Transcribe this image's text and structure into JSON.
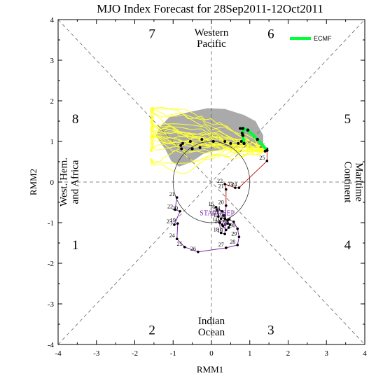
{
  "chart_data": {
    "type": "line",
    "title": "MJO Index Forecast for 28Sep2011-12Oct2011",
    "xlabel": "RMM1",
    "ylabel": "RMM2",
    "xlim": [
      -4,
      4
    ],
    "ylim": [
      -4,
      4
    ],
    "xticks": [
      "-4",
      "-3",
      "-2",
      "-1",
      "0",
      "1",
      "2",
      "3",
      "4"
    ],
    "yticks": [
      "-4",
      "-3",
      "-2",
      "-1",
      "0",
      "1",
      "2",
      "3",
      "4"
    ],
    "unit_circle_radius": 1,
    "legend": {
      "position": "top-right",
      "entries": [
        {
          "name": "ECMF",
          "color": "#00ff33"
        }
      ]
    },
    "phase_numbers": [
      {
        "label": "7",
        "x": -1.55,
        "y": 3.65
      },
      {
        "label": "6",
        "x": 1.55,
        "y": 3.65
      },
      {
        "label": "8",
        "x": -3.55,
        "y": 1.55
      },
      {
        "label": "5",
        "x": 3.55,
        "y": 1.55
      },
      {
        "label": "1",
        "x": -3.55,
        "y": -1.55
      },
      {
        "label": "4",
        "x": 3.55,
        "y": -1.55
      },
      {
        "label": "2",
        "x": -1.55,
        "y": -3.65
      },
      {
        "label": "3",
        "x": 1.55,
        "y": -3.65
      }
    ],
    "region_labels": [
      {
        "lines": [
          "Western",
          "Pacific"
        ],
        "x": 0,
        "y": 3.55,
        "rotate": 0
      },
      {
        "lines": [
          "Indian",
          "Ocean"
        ],
        "x": 0,
        "y": -3.55,
        "rotate": 0
      },
      {
        "lines": [
          "West. Hem.",
          "and Africa"
        ],
        "x": -3.72,
        "y": 0,
        "rotate": -90
      },
      {
        "lines": [
          "Maritime",
          "Continent"
        ],
        "x": 3.72,
        "y": 0,
        "rotate": 90
      }
    ],
    "start_label": {
      "text": "START SEP",
      "x": 0.15,
      "y": -0.82,
      "color": "#7a2ba6"
    },
    "observed": {
      "points": [
        {
          "label": "21",
          "x": -0.9,
          "y": -0.38
        },
        {
          "label": "22",
          "x": -0.95,
          "y": -0.68
        },
        {
          "label": "20",
          "x": -0.82,
          "y": -0.72
        },
        {
          "label": "23",
          "x": -0.97,
          "y": -1.05
        },
        {
          "label": "19",
          "x": -0.88,
          "y": -1.02
        },
        {
          "label": "24",
          "x": -0.9,
          "y": -1.4
        },
        {
          "label": "25",
          "x": -0.7,
          "y": -1.6
        },
        {
          "label": "26",
          "x": -0.35,
          "y": -1.72
        },
        {
          "label": "27",
          "x": 0.38,
          "y": -1.62
        },
        {
          "label": "28",
          "x": 0.68,
          "y": -1.55
        },
        {
          "label": "29",
          "x": 0.72,
          "y": -1.35
        },
        {
          "label": "30",
          "x": 0.68,
          "y": -1.15
        },
        {
          "label": "1",
          "x": 0.58,
          "y": -0.98
        },
        {
          "label": "2",
          "x": 0.45,
          "y": -0.92
        },
        {
          "label": "3",
          "x": 0.42,
          "y": -1.02
        },
        {
          "label": "4",
          "x": 0.3,
          "y": -1.08
        },
        {
          "label": "5",
          "x": 0.38,
          "y": -1.18
        },
        {
          "label": "6",
          "x": 0.45,
          "y": -1.12
        },
        {
          "label": "7",
          "x": 0.48,
          "y": -1.05
        },
        {
          "label": "8",
          "x": 0.42,
          "y": -0.95
        },
        {
          "label": "9",
          "x": 0.35,
          "y": -0.9
        },
        {
          "label": "10",
          "x": 0.28,
          "y": -1.05
        },
        {
          "label": "11",
          "x": 0.22,
          "y": -1.0
        },
        {
          "label": "12",
          "x": 0.25,
          "y": -0.9
        },
        {
          "label": "13",
          "x": 0.32,
          "y": -0.82
        },
        {
          "label": "14",
          "x": 0.28,
          "y": -0.72
        },
        {
          "label": "15",
          "x": 0.12,
          "y": -0.62
        },
        {
          "label": "16",
          "x": 0.15,
          "y": -0.7
        },
        {
          "label": "17",
          "x": 0.18,
          "y": -0.85
        },
        {
          "label": "18",
          "x": 0.25,
          "y": -1.25
        },
        {
          "label": "19",
          "x": 0.35,
          "y": -1.28
        },
        {
          "label": "20",
          "x": 0.38,
          "y": -0.58
        },
        {
          "label": "21",
          "x": 0.38,
          "y": -0.18
        },
        {
          "label": "22",
          "x": 0.35,
          "y": -0.05
        },
        {
          "label": "23",
          "x": 0.62,
          "y": -0.14
        },
        {
          "label": "24",
          "x": 0.72,
          "y": -0.14
        },
        {
          "label": "25",
          "x": 1.45,
          "y": 0.52
        },
        {
          "label": "26",
          "x": 1.45,
          "y": 0.82
        }
      ],
      "colors": {
        "sep": "#7a2ba6",
        "oct": "#c0201a",
        "points": "#000000"
      }
    },
    "ensemble_mean": {
      "name": "ECMF",
      "color": "#00ff33",
      "points": [
        {
          "x": 1.45,
          "y": 0.78
        },
        {
          "x": 1.2,
          "y": 1.05
        },
        {
          "x": 0.95,
          "y": 1.28
        },
        {
          "x": 0.82,
          "y": 1.32
        },
        {
          "x": 0.82,
          "y": 1.15
        },
        {
          "x": 0.85,
          "y": 0.95
        }
      ]
    },
    "ensemble_dots": [
      {
        "x": 0.75,
        "y": 1.32
      },
      {
        "x": 0.8,
        "y": 1.2
      },
      {
        "x": 0.78,
        "y": 1.0
      },
      {
        "x": 0.7,
        "y": 0.95
      },
      {
        "x": 0.5,
        "y": 0.95
      },
      {
        "x": 0.35,
        "y": 1.0
      },
      {
        "x": 0.05,
        "y": 1.0
      },
      {
        "x": -0.25,
        "y": 1.05
      },
      {
        "x": -0.55,
        "y": 1.0
      },
      {
        "x": -0.75,
        "y": 0.95
      },
      {
        "x": -0.8,
        "y": 0.9
      },
      {
        "x": -0.78,
        "y": 0.82
      },
      {
        "x": -0.5,
        "y": 0.82
      },
      {
        "x": -0.3,
        "y": 0.85
      },
      {
        "x": 1.4,
        "y": 0.76
      }
    ],
    "plume": {
      "color": "#aaaaaa",
      "outline": [
        [
          -1.45,
          1.15
        ],
        [
          -1.35,
          1.35
        ],
        [
          -1.1,
          1.6
        ],
        [
          -0.6,
          1.72
        ],
        [
          -0.1,
          1.82
        ],
        [
          0.35,
          1.8
        ],
        [
          0.85,
          1.65
        ],
        [
          1.15,
          1.5
        ],
        [
          1.35,
          1.15
        ],
        [
          1.35,
          0.85
        ],
        [
          0.95,
          0.85
        ],
        [
          0.35,
          0.82
        ],
        [
          -0.2,
          0.7
        ],
        [
          -0.55,
          0.48
        ],
        [
          -0.85,
          0.38
        ],
        [
          -1.05,
          0.52
        ],
        [
          -1.2,
          0.8
        ],
        [
          -1.35,
          1.0
        ]
      ]
    },
    "ensemble_members": {
      "color": "#ffff33"
    }
  }
}
